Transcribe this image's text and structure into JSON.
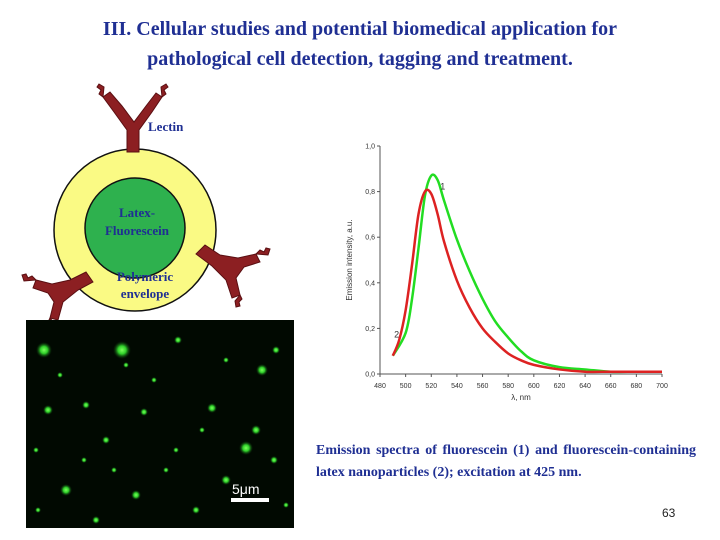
{
  "slide": {
    "title_line1": "III. Cellular studies and potential biomedical application for",
    "title_line2": "pathological cell detection, tagging  and treatment.",
    "page_number": "63"
  },
  "diagram": {
    "lectin_label": "Lectin",
    "core_label_line1": "Latex-",
    "core_label_line2": "Fluorescein",
    "envelope_label_line1": "Polymeric",
    "envelope_label_line2": "envelope",
    "colors": {
      "envelope": "#fafa84",
      "core": "#2eb14e",
      "lectin": "#8c1f22"
    }
  },
  "micrograph": {
    "scale_label": "5μm"
  },
  "caption": "Emission spectra of fluorescein (1) and fluorescein-containing latex nanoparticles (2); excitation at 425 nm.",
  "chart_data": {
    "type": "line",
    "xlabel": "λ, nm",
    "ylabel": "Emission intensity, a.u.",
    "xlim": [
      480,
      700
    ],
    "ylim": [
      0,
      1.0
    ],
    "x_ticks": [
      "480",
      "500",
      "520",
      "540",
      "560",
      "580",
      "600",
      "620",
      "640",
      "660",
      "680",
      "700"
    ],
    "y_ticks": [
      "0,0",
      "0,2",
      "0,4",
      "0,6",
      "0,8",
      "1,0"
    ],
    "series": [
      {
        "name": "1",
        "color": "#22dd22",
        "x": [
          490,
          500,
          505,
          510,
          515,
          520,
          525,
          530,
          540,
          550,
          560,
          570,
          580,
          590,
          600,
          620,
          640,
          660,
          680,
          700
        ],
        "y": [
          0.08,
          0.18,
          0.33,
          0.55,
          0.78,
          0.87,
          0.85,
          0.76,
          0.59,
          0.45,
          0.33,
          0.23,
          0.16,
          0.1,
          0.06,
          0.03,
          0.02,
          0.01,
          0.01,
          0.01
        ]
      },
      {
        "name": "2",
        "color": "#dd2222",
        "x": [
          490,
          495,
          500,
          505,
          510,
          515,
          520,
          525,
          530,
          540,
          550,
          560,
          570,
          580,
          590,
          600,
          620,
          640,
          660,
          680,
          700
        ],
        "y": [
          0.08,
          0.15,
          0.28,
          0.48,
          0.7,
          0.8,
          0.79,
          0.7,
          0.58,
          0.41,
          0.29,
          0.2,
          0.14,
          0.09,
          0.06,
          0.04,
          0.02,
          0.01,
          0.01,
          0.01,
          0.01
        ]
      }
    ],
    "annotations": [
      {
        "text": "1",
        "x": 527,
        "y": 0.81
      },
      {
        "text": "2",
        "x": 491,
        "y": 0.16
      }
    ],
    "grid": false
  }
}
